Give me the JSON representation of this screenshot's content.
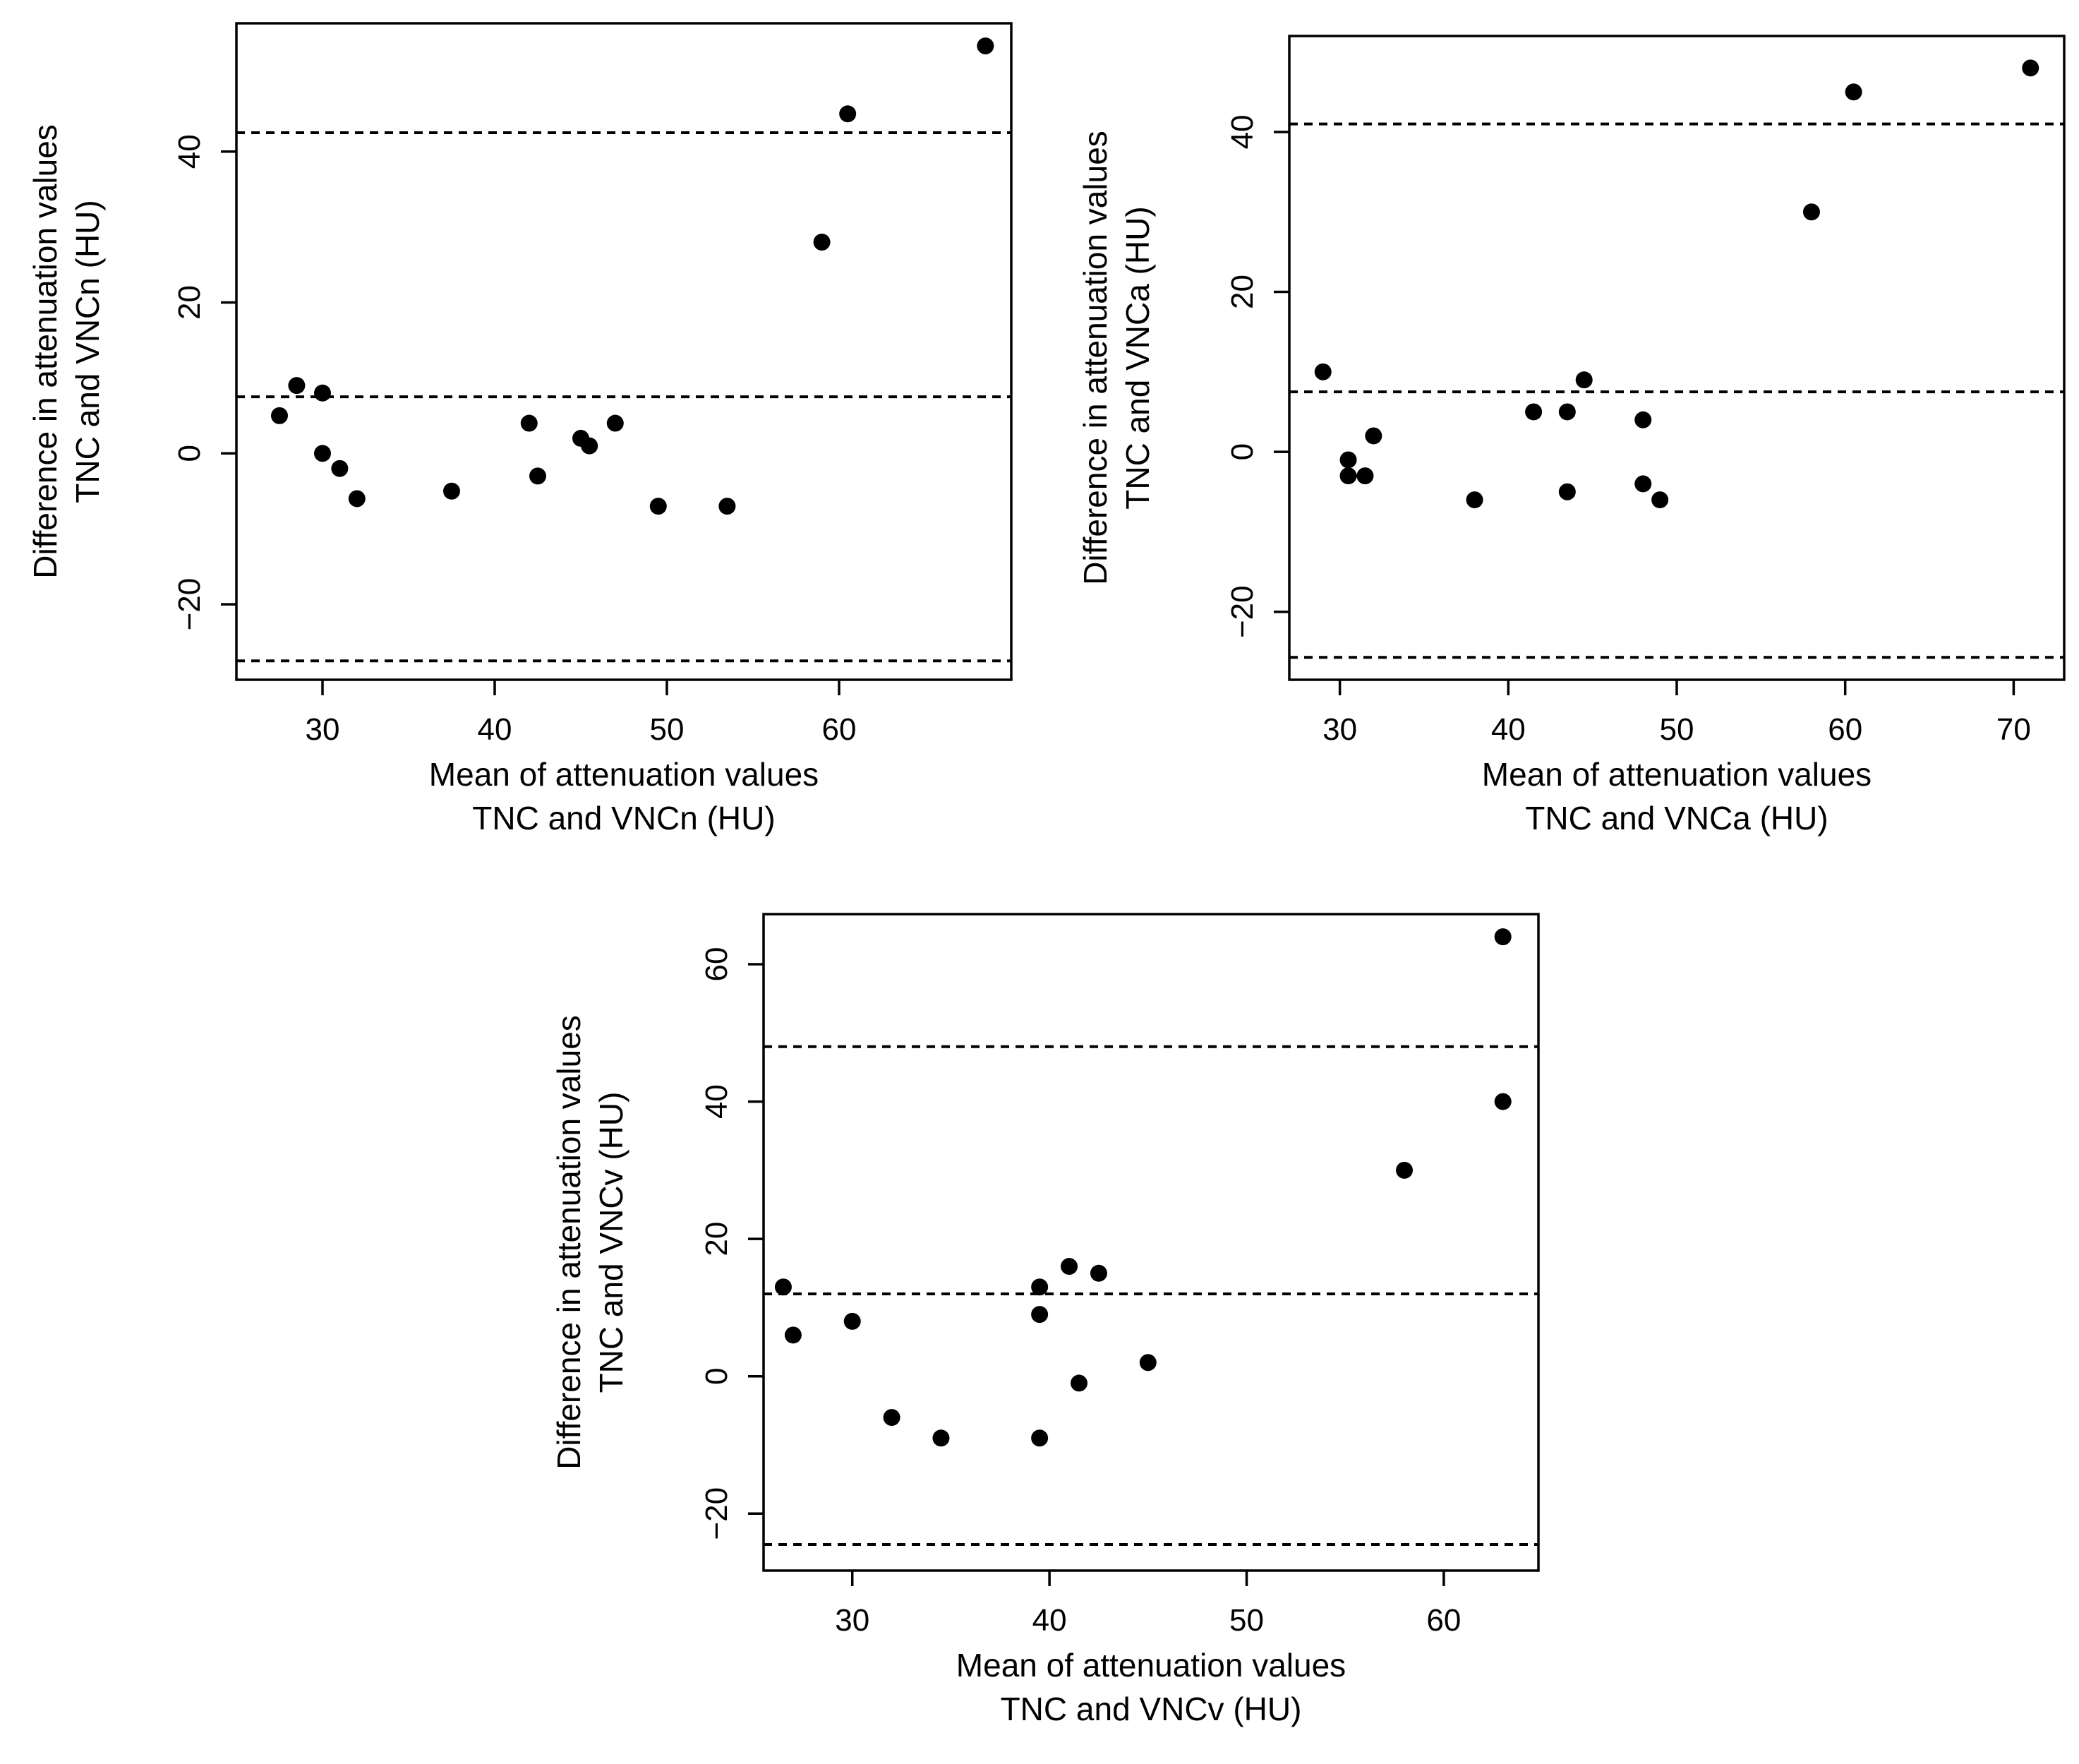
{
  "chart_data": [
    {
      "type": "scatter",
      "title": "",
      "xlabel": [
        "Mean of attenuation values",
        "TNC and VNCn (HU)"
      ],
      "ylabel": [
        "Difference in attenuation values",
        "TNC and VNCn (HU)"
      ],
      "xlim": [
        25,
        70
      ],
      "ylim": [
        -30,
        57
      ],
      "xticks": [
        30,
        40,
        50,
        60
      ],
      "yticks": [
        -20,
        0,
        20,
        40
      ],
      "reference_lines": [
        42.5,
        7.5,
        -27.5
      ],
      "x": [
        27.5,
        28.5,
        30,
        30,
        31,
        32,
        37.5,
        42,
        42.5,
        45,
        45.5,
        47,
        49.5,
        53.5,
        59,
        60.5,
        68.5
      ],
      "y": [
        5,
        9,
        8,
        0,
        -2,
        -6,
        -5,
        4,
        -3,
        2,
        1,
        4,
        -7,
        -7,
        28,
        45,
        54
      ]
    },
    {
      "type": "scatter",
      "title": "",
      "xlabel": [
        "Mean of attenuation values",
        "TNC and VNCa (HU)"
      ],
      "ylabel": [
        "Difference in attenuation values",
        "TNC and VNCa (HU)"
      ],
      "xlim": [
        27,
        73
      ],
      "ylim": [
        -28.5,
        52
      ],
      "xticks": [
        30,
        40,
        50,
        60,
        70
      ],
      "yticks": [
        -20,
        0,
        20,
        40
      ],
      "reference_lines": [
        41,
        7.5,
        -25.7
      ],
      "x": [
        29,
        30.5,
        30.5,
        31.5,
        32,
        38,
        41.5,
        43.5,
        43.5,
        44.5,
        48,
        48,
        49,
        58,
        60.5,
        71
      ],
      "y": [
        10,
        -1,
        -3,
        -3,
        2,
        -6,
        5,
        5,
        -5,
        9,
        4,
        -4,
        -6,
        30,
        45,
        48
      ]
    },
    {
      "type": "scatter",
      "title": "",
      "xlabel": [
        "Mean of attenuation values",
        "TNC and VNCv (HU)"
      ],
      "ylabel": [
        "Difference in attenuation values",
        "TNC and VNCv (HU)"
      ],
      "xlim": [
        25.5,
        64.8
      ],
      "ylim": [
        -28.3,
        67.3
      ],
      "xticks": [
        30,
        40,
        50,
        60
      ],
      "yticks": [
        -20,
        0,
        20,
        40,
        60
      ],
      "reference_lines": [
        48,
        12,
        -24.5
      ],
      "x": [
        26.5,
        27,
        30,
        32,
        34.5,
        39.5,
        39.5,
        39.5,
        41,
        41.5,
        42.5,
        45,
        58,
        63,
        63
      ],
      "y": [
        13,
        6,
        8,
        -6,
        -9,
        13,
        9,
        -9,
        16,
        -1,
        15,
        2,
        30,
        40,
        64
      ]
    }
  ]
}
